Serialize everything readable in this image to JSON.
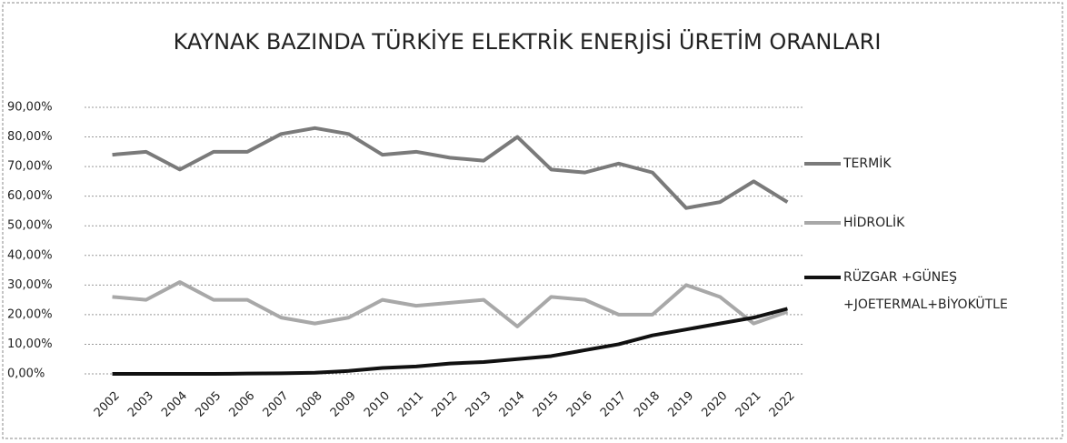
{
  "chart_data": {
    "type": "line",
    "title": "KAYNAK BAZINDA TÜRKİYE ELEKTRİK ENERJİSİ ÜRETİM ORANLARI",
    "categories": [
      "2002",
      "2003",
      "2004",
      "2005",
      "2006",
      "2007",
      "2008",
      "2009",
      "2010",
      "2011",
      "2012",
      "2013",
      "2014",
      "2015",
      "2016",
      "2017",
      "2018",
      "2019",
      "2020",
      "2021",
      "2022"
    ],
    "series": [
      {
        "name": "TERMİK",
        "color": "#7a7a7a",
        "values": [
          74,
          75,
          69,
          75,
          75,
          81,
          83,
          81,
          74,
          75,
          73,
          72,
          80,
          69,
          68,
          71,
          68,
          56,
          58,
          65,
          58
        ]
      },
      {
        "name": "HİDROLİK",
        "color": "#a8a8a8",
        "values": [
          26,
          25,
          31,
          25,
          25,
          19,
          17,
          19,
          25,
          23,
          24,
          25,
          16,
          26,
          25,
          20,
          20,
          30,
          26,
          17,
          21
        ]
      },
      {
        "name": "RÜZGAR +GÜNEŞ +JOETERMAL+BİYOKÜTLE",
        "color": "#111111",
        "values": [
          0,
          0,
          0,
          0,
          0.1,
          0.2,
          0.4,
          1,
          2,
          2.5,
          3.5,
          4,
          5,
          6,
          8,
          10,
          13,
          15,
          17,
          19,
          22
        ]
      }
    ],
    "ylim": [
      0,
      90
    ],
    "yticks": [
      {
        "value": 0,
        "label": "0,00%"
      },
      {
        "value": 10,
        "label": "10,00%"
      },
      {
        "value": 20,
        "label": "20,00%"
      },
      {
        "value": 30,
        "label": "30,00%"
      },
      {
        "value": 40,
        "label": "40,00%"
      },
      {
        "value": 50,
        "label": "50,00%"
      },
      {
        "value": 60,
        "label": "60,00%"
      },
      {
        "value": 70,
        "label": "70,00%"
      },
      {
        "value": 80,
        "label": "80,00%"
      },
      {
        "value": 90,
        "label": "90,00%"
      }
    ],
    "grid": true,
    "legend": "right"
  }
}
